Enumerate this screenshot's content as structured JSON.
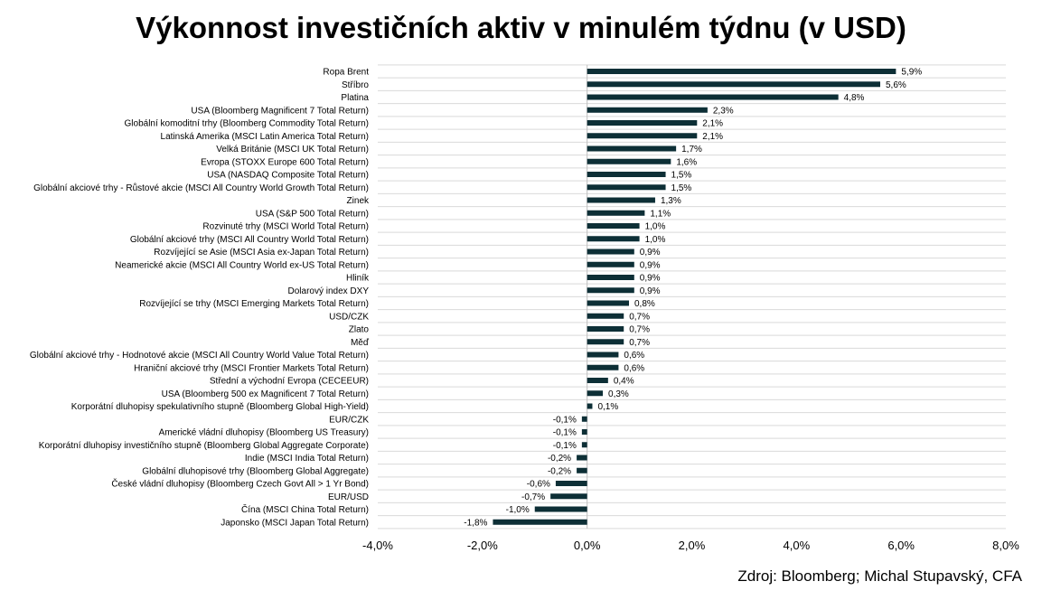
{
  "chart_data": {
    "type": "bar",
    "orientation": "horizontal",
    "title": "Výkonnost investičních aktiv v minulém týdnu (v USD)",
    "source": "Zdroj: Bloomberg; Michal Stupavský, CFA",
    "categories": [
      "Ropa Brent",
      "Stříbro",
      "Platina",
      "USA (Bloomberg Magnificent 7 Total Return)",
      "Globální komoditní trhy (Bloomberg Commodity Total Return)",
      "Latinská Amerika (MSCI Latin America Total Return)",
      "Velká Británie (MSCI UK Total Return)",
      "Evropa (STOXX Europe 600 Total Return)",
      "USA (NASDAQ Composite Total Return)",
      "Globální akciové trhy - Růstové akcie (MSCI All Country World Growth Total Return)",
      "Zinek",
      "USA (S&P 500 Total Return)",
      "Rozvinuté trhy (MSCI World Total Return)",
      "Globální akciové trhy (MSCI All Country World Total Return)",
      "Rozvíjející se Asie (MSCI Asia ex-Japan Total Return)",
      "Neamerické akcie (MSCI All Country World ex-US Total Return)",
      "Hliník",
      "Dolarový index DXY",
      "Rozvíjející se trhy (MSCI Emerging Markets Total Return)",
      "USD/CZK",
      "Zlato",
      "Měď",
      "Globální akciové trhy - Hodnotové akcie (MSCI All Country World Value Total Return)",
      "Hraniční akciové trhy (MSCI Frontier Markets Total Return)",
      "Střední a východní Evropa (CECEEUR)",
      "USA (Bloomberg 500 ex Magnificent 7 Total Return)",
      "Korporátní dluhopisy spekulativního stupně (Bloomberg Global High-Yield)",
      "EUR/CZK",
      "Americké vládní dluhopisy (Bloomberg US Treasury)",
      "Korporátní dluhopisy investičního stupně (Bloomberg Global Aggregate Corporate)",
      "Indie (MSCI India Total Return)",
      "Globální dluhopisové trhy (Bloomberg Global Aggregate)",
      "České vládní dluhopisy (Bloomberg Czech Govt All > 1 Yr Bond)",
      "EUR/USD",
      "Čína (MSCI China Total Return)",
      "Japonsko (MSCI Japan Total Return)"
    ],
    "values": [
      5.9,
      5.6,
      4.8,
      2.3,
      2.1,
      2.1,
      1.7,
      1.6,
      1.5,
      1.5,
      1.3,
      1.1,
      1.0,
      1.0,
      0.9,
      0.9,
      0.9,
      0.9,
      0.8,
      0.7,
      0.7,
      0.7,
      0.6,
      0.6,
      0.4,
      0.3,
      0.1,
      -0.1,
      -0.1,
      -0.1,
      -0.2,
      -0.2,
      -0.6,
      -0.7,
      -1.0,
      -1.8
    ],
    "value_labels": [
      "5,9%",
      "5,6%",
      "4,8%",
      "2,3%",
      "2,1%",
      "2,1%",
      "1,7%",
      "1,6%",
      "1,5%",
      "1,5%",
      "1,3%",
      "1,1%",
      "1,0%",
      "1,0%",
      "0,9%",
      "0,9%",
      "0,9%",
      "0,9%",
      "0,8%",
      "0,7%",
      "0,7%",
      "0,7%",
      "0,6%",
      "0,6%",
      "0,4%",
      "0,3%",
      "0,1%",
      "-0,1%",
      "-0,1%",
      "-0,1%",
      "-0,2%",
      "-0,2%",
      "-0,6%",
      "-0,7%",
      "-1,0%",
      "-1,8%"
    ],
    "xlim": [
      -4.0,
      8.0
    ],
    "xticks": [
      -4.0,
      -2.0,
      0.0,
      2.0,
      4.0,
      6.0,
      8.0
    ],
    "xtick_labels": [
      "-4,0%",
      "-2,0%",
      "0,0%",
      "2,0%",
      "4,0%",
      "6,0%",
      "8,0%"
    ],
    "xlabel": "",
    "ylabel": "",
    "grid": true,
    "legend": "none",
    "bar_color": "#0d2f36",
    "grid_color": "#d9d9d9"
  }
}
